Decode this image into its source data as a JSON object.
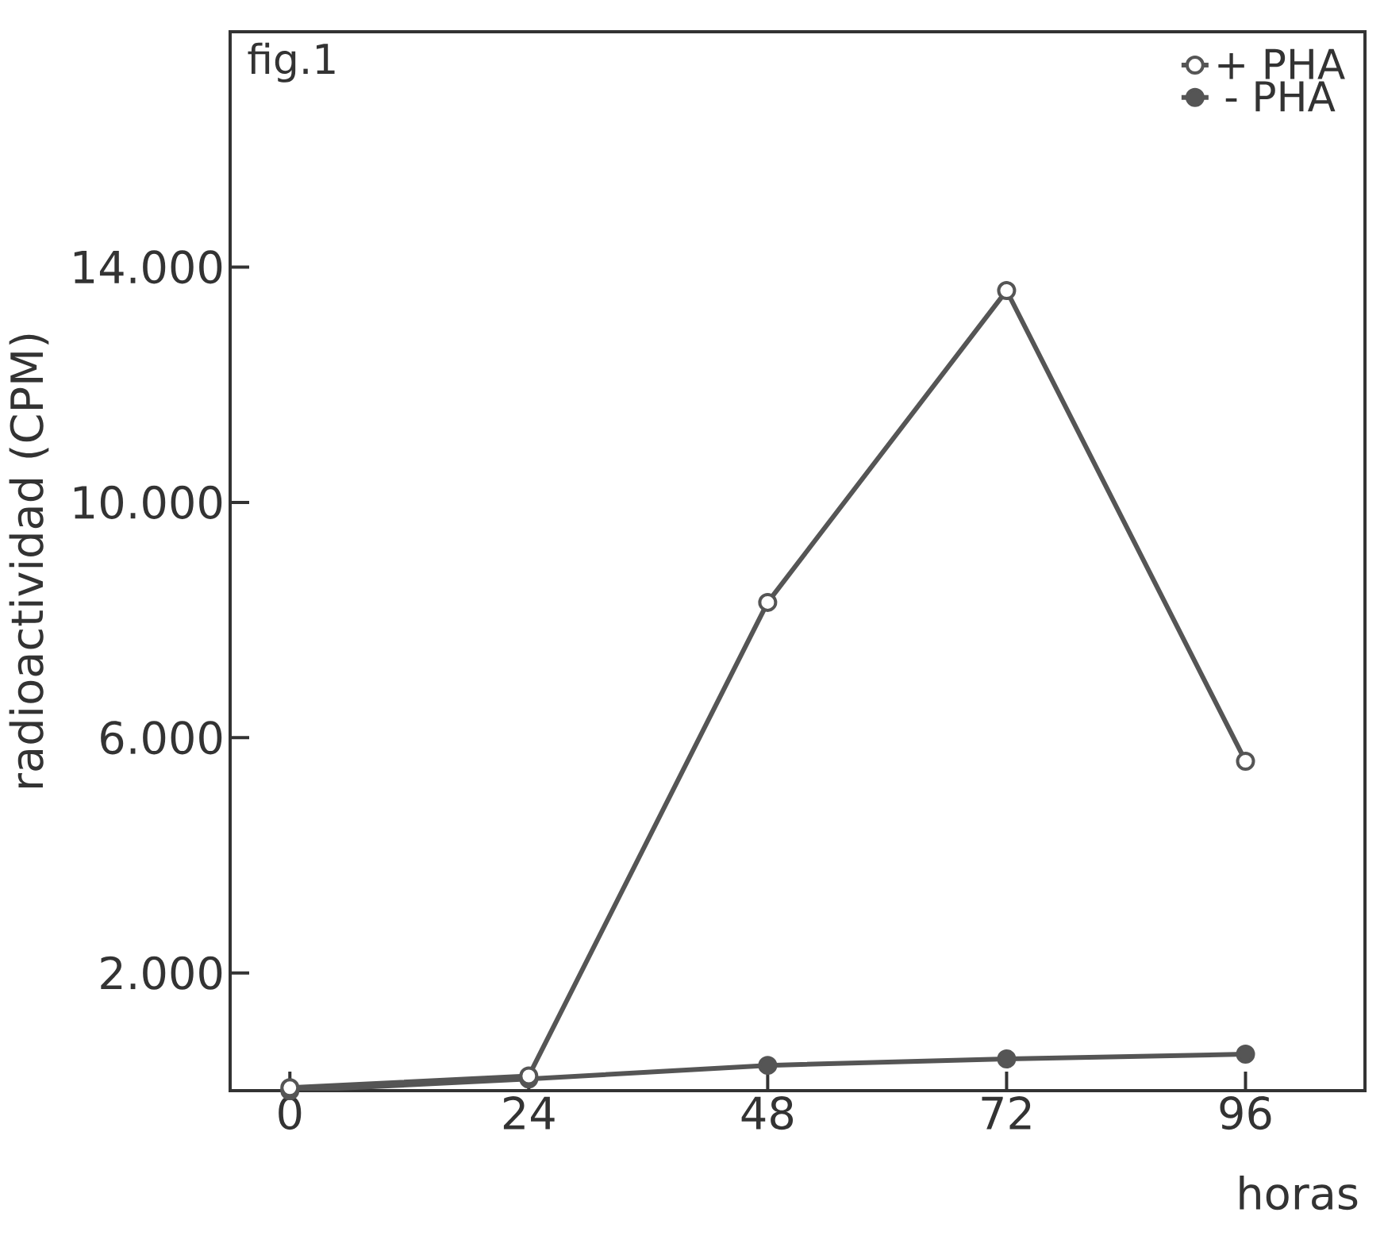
{
  "chart_data": {
    "type": "line",
    "xlabel": "horas",
    "ylabel": "radioactividad (CPM)",
    "annotations": [
      "fig.1"
    ],
    "x": [
      0,
      24,
      48,
      72,
      96
    ],
    "series": [
      {
        "name": "+ PHA",
        "color": "#555555",
        "values": [
          50,
          250,
          8300,
          13600,
          5600
        ]
      },
      {
        "name": "- PHA",
        "color": "#555555",
        "values": [
          0,
          200,
          430,
          540,
          620
        ]
      }
    ],
    "xlim": [
      -6,
      108
    ],
    "xticks": [
      0,
      24,
      48,
      72,
      96
    ],
    "ylim": [
      0,
      18000
    ],
    "yticks": [
      {
        "value": 2000,
        "label": "2.000"
      },
      {
        "value": 6000,
        "label": "6.000"
      },
      {
        "value": 10000,
        "label": "10.000"
      },
      {
        "value": 14000,
        "label": "14.000"
      }
    ],
    "legend": "top right",
    "marker": "circle",
    "line_style": "solid",
    "grid": false
  }
}
